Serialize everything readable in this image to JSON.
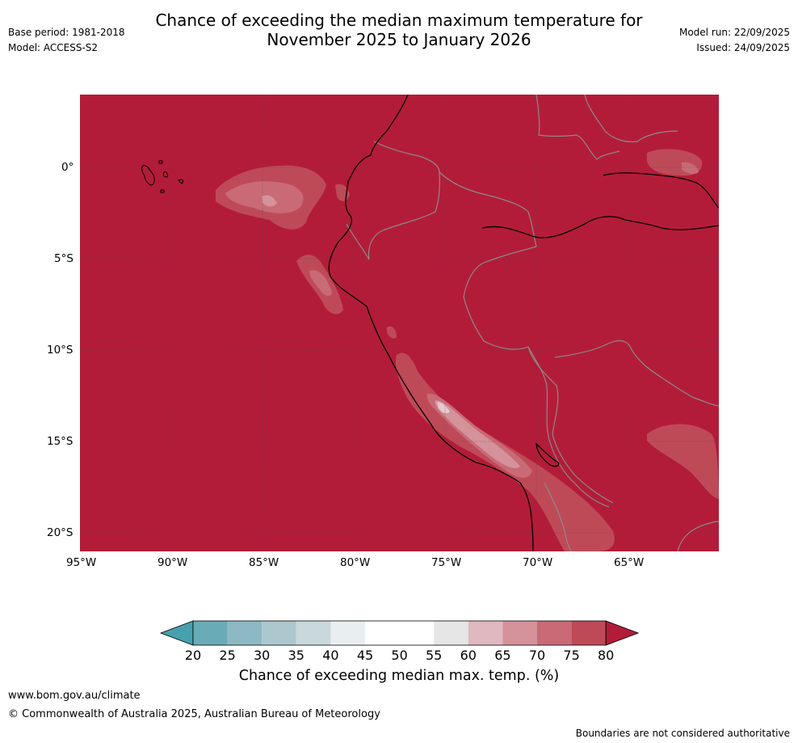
{
  "header": {
    "title_line1": "Chance of exceeding the median maximum temperature for",
    "title_line2": "November 2025 to January 2026",
    "base_period": "Base period: 1981-2018",
    "model": "Model: ACCESS-S2",
    "model_run": "Model run: 22/09/2025",
    "issued": "Issued: 24/09/2025"
  },
  "map": {
    "background_color": "#b31c39",
    "lat_labels": [
      "0°",
      "5°S",
      "10°S",
      "15°S",
      "20°S"
    ],
    "lon_labels": [
      "95°W",
      "90°W",
      "85°W",
      "80°W",
      "75°W",
      "70°W",
      "65°W"
    ]
  },
  "colorbar": {
    "ticks": [
      "20",
      "25",
      "30",
      "35",
      "40",
      "45",
      "50",
      "55",
      "60",
      "65",
      "70",
      "75",
      "80"
    ],
    "colors": [
      "#47a0ad",
      "#6aabb8",
      "#8db9c4",
      "#acc8ce",
      "#c9d8dc",
      "#e9eff1",
      "#ffffff",
      "#ffffff",
      "#e6e6e6",
      "#dfb9bf",
      "#d4929b",
      "#c96a76",
      "#be4a58",
      "#b31c39"
    ],
    "label": "Chance of exceeding median max. temp. (%)"
  },
  "footer": {
    "website": "www.bom.gov.au/climate",
    "copyright": "© Commonwealth of Australia 2025, Australian Bureau of Meteorology",
    "disclaimer": "Boundaries are not considered authoritative"
  }
}
